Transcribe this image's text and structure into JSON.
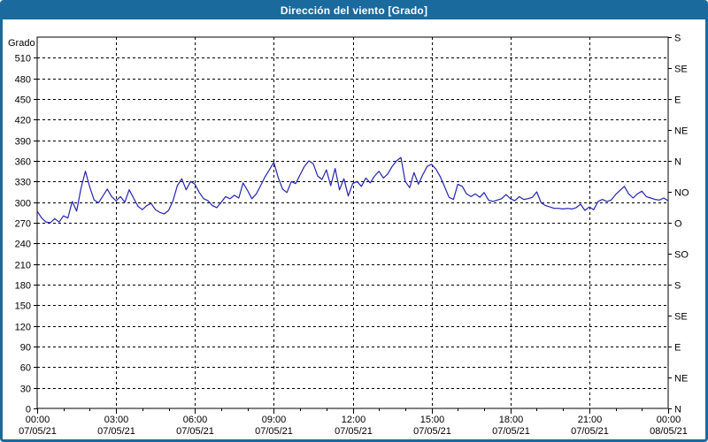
{
  "window": {
    "title": "Dirección del viento [Grado]"
  },
  "colors": {
    "frame": "#1b6a9d",
    "titlebar_bg": "#1b6a9d",
    "titlebar_text": "#ffffff",
    "plot_bg": "#ffffff",
    "axis": "#000000",
    "grid": "#000000",
    "tick_text": "#000000",
    "line": "#2323b4"
  },
  "chart_data": {
    "type": "line",
    "title": "Dirección del viento [Grado]",
    "ylabel": "Grado",
    "ylim": [
      0,
      540
    ],
    "xlim_minutes": [
      0,
      1440
    ],
    "grid": {
      "h_step_deg": 30,
      "v_step_minutes": 180,
      "style": "dashed"
    },
    "y_axis_left": {
      "label": "Grado",
      "tick_step": 30,
      "tick_labels": [
        0,
        30,
        60,
        90,
        120,
        150,
        180,
        210,
        240,
        270,
        300,
        330,
        360,
        390,
        420,
        450,
        480,
        510
      ]
    },
    "y_axis_right": {
      "tick_step": 45,
      "labels_bottom_to_top": [
        "N",
        "NE",
        "E",
        "SE",
        "S",
        "SO",
        "O",
        "NO",
        "N",
        "NE",
        "E",
        "SE",
        "S"
      ]
    },
    "x_axis": {
      "minor_tick_minutes": 60,
      "major_ticks": [
        {
          "minute": 0,
          "time": "00:00",
          "date": "07/05/21"
        },
        {
          "minute": 180,
          "time": "03:00",
          "date": "07/05/21"
        },
        {
          "minute": 360,
          "time": "06:00",
          "date": "07/05/21"
        },
        {
          "minute": 540,
          "time": "09:00",
          "date": "07/05/21"
        },
        {
          "minute": 720,
          "time": "12:00",
          "date": "07/05/21"
        },
        {
          "minute": 900,
          "time": "15:00",
          "date": "07/05/21"
        },
        {
          "minute": 1080,
          "time": "18:00",
          "date": "07/05/21"
        },
        {
          "minute": 1260,
          "time": "21:00",
          "date": "07/05/21"
        },
        {
          "minute": 1440,
          "time": "00:00",
          "date": "08/05/21"
        }
      ]
    },
    "series": [
      {
        "name": "Dirección del viento",
        "unit": "Grado",
        "start_minute": 0,
        "interval_minutes": 10,
        "values": [
          287,
          277,
          271,
          270,
          276,
          271,
          280,
          277,
          301,
          287,
          320,
          345,
          322,
          303,
          299,
          309,
          319,
          308,
          302,
          308,
          300,
          318,
          306,
          294,
          289,
          295,
          298,
          289,
          285,
          283,
          288,
          302,
          324,
          334,
          318,
          330,
          326,
          314,
          305,
          302,
          295,
          292,
          300,
          308,
          305,
          310,
          306,
          328,
          317,
          305,
          312,
          324,
          337,
          347,
          358,
          336,
          319,
          314,
          330,
          327,
          340,
          352,
          360,
          356,
          338,
          333,
          347,
          324,
          349,
          318,
          334,
          309,
          327,
          330,
          323,
          335,
          328,
          338,
          345,
          335,
          341,
          352,
          360,
          365,
          330,
          321,
          343,
          326,
          340,
          352,
          355,
          348,
          337,
          322,
          307,
          304,
          326,
          323,
          312,
          308,
          312,
          307,
          314,
          303,
          301,
          303,
          305,
          311,
          305,
          302,
          308,
          304,
          305,
          307,
          315,
          299,
          295,
          293,
          291,
          291,
          290,
          291,
          290,
          292,
          297,
          288,
          293,
          289,
          301,
          304,
          301,
          303,
          311,
          317,
          323,
          312,
          306,
          312,
          316,
          308,
          306,
          304,
          303,
          306,
          302
        ]
      }
    ]
  }
}
